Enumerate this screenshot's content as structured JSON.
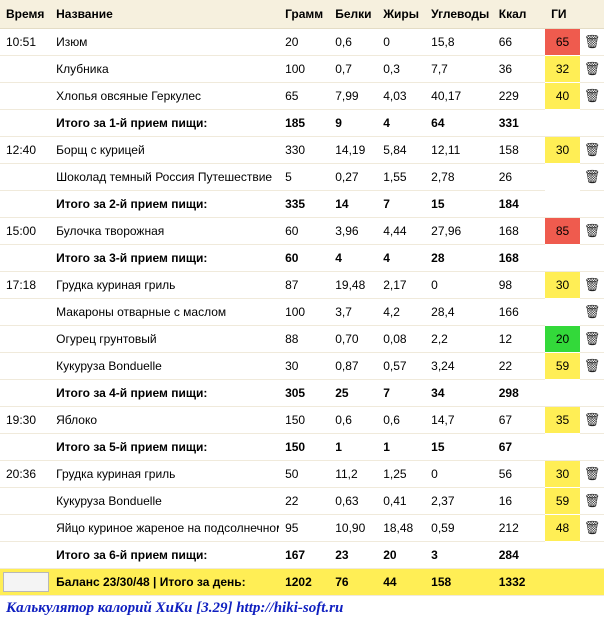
{
  "columns": {
    "time": "Время",
    "name": "Название",
    "grams": "Грамм",
    "protein": "Белки",
    "fat": "Жиры",
    "carb": "Углеводы",
    "kcal": "Ккал",
    "gi": "ГИ"
  },
  "gi_palette": {
    "red": "#ef5b4e",
    "yellow": "#ffee55",
    "green": "#33d93a"
  },
  "icons": {
    "trash": "🗑"
  },
  "meals": [
    {
      "time": "10:51",
      "items": [
        {
          "name": "Изюм",
          "g": "20",
          "p": "0,6",
          "f": "0",
          "c": "15,8",
          "k": "66",
          "gi": "65",
          "gi_color": "red"
        },
        {
          "name": "Клубника",
          "g": "100",
          "p": "0,7",
          "f": "0,3",
          "c": "7,7",
          "k": "36",
          "gi": "32",
          "gi_color": "yellow"
        },
        {
          "name": "Хлопья овсяные Геркулес",
          "g": "65",
          "p": "7,99",
          "f": "4,03",
          "c": "40,17",
          "k": "229",
          "gi": "40",
          "gi_color": "yellow"
        }
      ],
      "subtotal": {
        "label": "Итого за 1-й прием пищи:",
        "g": "185",
        "p": "9",
        "f": "4",
        "c": "64",
        "k": "331"
      }
    },
    {
      "time": "12:40",
      "items": [
        {
          "name": "Борщ с курицей",
          "g": "330",
          "p": "14,19",
          "f": "5,84",
          "c": "12,11",
          "k": "158",
          "gi": "30",
          "gi_color": "yellow"
        },
        {
          "name": "Шоколад темный Россия Путешествие",
          "g": "5",
          "p": "0,27",
          "f": "1,55",
          "c": "2,78",
          "k": "26"
        }
      ],
      "subtotal": {
        "label": "Итого за 2-й прием пищи:",
        "g": "335",
        "p": "14",
        "f": "7",
        "c": "15",
        "k": "184"
      }
    },
    {
      "time": "15:00",
      "items": [
        {
          "name": "Булочка творожная",
          "g": "60",
          "p": "3,96",
          "f": "4,44",
          "c": "27,96",
          "k": "168",
          "gi": "85",
          "gi_color": "red"
        }
      ],
      "subtotal": {
        "label": "Итого за 3-й прием пищи:",
        "g": "60",
        "p": "4",
        "f": "4",
        "c": "28",
        "k": "168"
      }
    },
    {
      "time": "17:18",
      "items": [
        {
          "name": "Грудка куриная гриль",
          "g": "87",
          "p": "19,48",
          "f": "2,17",
          "c": "0",
          "k": "98",
          "gi": "30",
          "gi_color": "yellow"
        },
        {
          "name": "Макароны отварные с маслом",
          "g": "100",
          "p": "3,7",
          "f": "4,2",
          "c": "28,4",
          "k": "166"
        },
        {
          "name": "Огурец грунтовый",
          "g": "88",
          "p": "0,70",
          "f": "0,08",
          "c": "2,2",
          "k": "12",
          "gi": "20",
          "gi_color": "green"
        },
        {
          "name": "Кукуруза Bonduelle",
          "g": "30",
          "p": "0,87",
          "f": "0,57",
          "c": "3,24",
          "k": "22",
          "gi": "59",
          "gi_color": "yellow"
        }
      ],
      "subtotal": {
        "label": "Итого за 4-й прием пищи:",
        "g": "305",
        "p": "25",
        "f": "7",
        "c": "34",
        "k": "298"
      }
    },
    {
      "time": "19:30",
      "items": [
        {
          "name": "Яблоко",
          "g": "150",
          "p": "0,6",
          "f": "0,6",
          "c": "14,7",
          "k": "67",
          "gi": "35",
          "gi_color": "yellow"
        }
      ],
      "subtotal": {
        "label": "Итого за 5-й прием пищи:",
        "g": "150",
        "p": "1",
        "f": "1",
        "c": "15",
        "k": "67"
      }
    },
    {
      "time": "20:36",
      "items": [
        {
          "name": "Грудка куриная гриль",
          "g": "50",
          "p": "11,2",
          "f": "1,25",
          "c": "0",
          "k": "56",
          "gi": "30",
          "gi_color": "yellow"
        },
        {
          "name": "Кукуруза Bonduelle",
          "g": "22",
          "p": "0,63",
          "f": "0,41",
          "c": "2,37",
          "k": "16",
          "gi": "59",
          "gi_color": "yellow"
        },
        {
          "name": "Яйцо куриное жареное на подсолнечном масле",
          "g": "95",
          "p": "10,90",
          "f": "18,48",
          "c": "0,59",
          "k": "212",
          "gi": "48",
          "gi_color": "yellow"
        }
      ],
      "subtotal": {
        "label": "Итого за 6-й прием пищи:",
        "g": "167",
        "p": "23",
        "f": "20",
        "c": "3",
        "k": "284"
      }
    }
  ],
  "day_total": {
    "label": "Баланс 23/30/48  |  Итого за день:",
    "g": "1202",
    "p": "76",
    "f": "44",
    "c": "158",
    "k": "1332"
  },
  "footer_text": "Калькулятор калорий ХиКи [3.29] http://hiki-soft.ru"
}
